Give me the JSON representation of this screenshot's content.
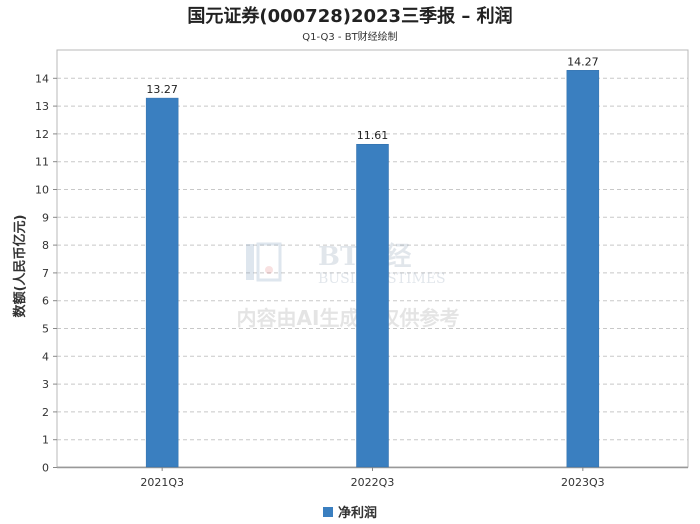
{
  "chart_data": {
    "type": "bar",
    "title": "国元证券(000728)2023三季报 – 利润",
    "subtitle": "Q1-Q3 - BT财经绘制",
    "ylabel": "数额(人民币亿元)",
    "xlabel": "",
    "categories": [
      "2021Q3",
      "2022Q3",
      "2023Q3"
    ],
    "series": [
      {
        "name": "净利润",
        "values": [
          13.27,
          11.61,
          14.27
        ],
        "color": "#3a7fc0"
      }
    ],
    "ylim": [
      0,
      15
    ],
    "yticks": [
      0,
      1,
      2,
      3,
      4,
      5,
      6,
      7,
      8,
      9,
      10,
      11,
      12,
      13,
      14
    ],
    "grid": true,
    "legend_position": "bottom"
  },
  "watermark": {
    "brand": "BT财经",
    "brand_en": "BUSINESSTIMES",
    "notice": "内容由AI生成，仅供参考"
  }
}
